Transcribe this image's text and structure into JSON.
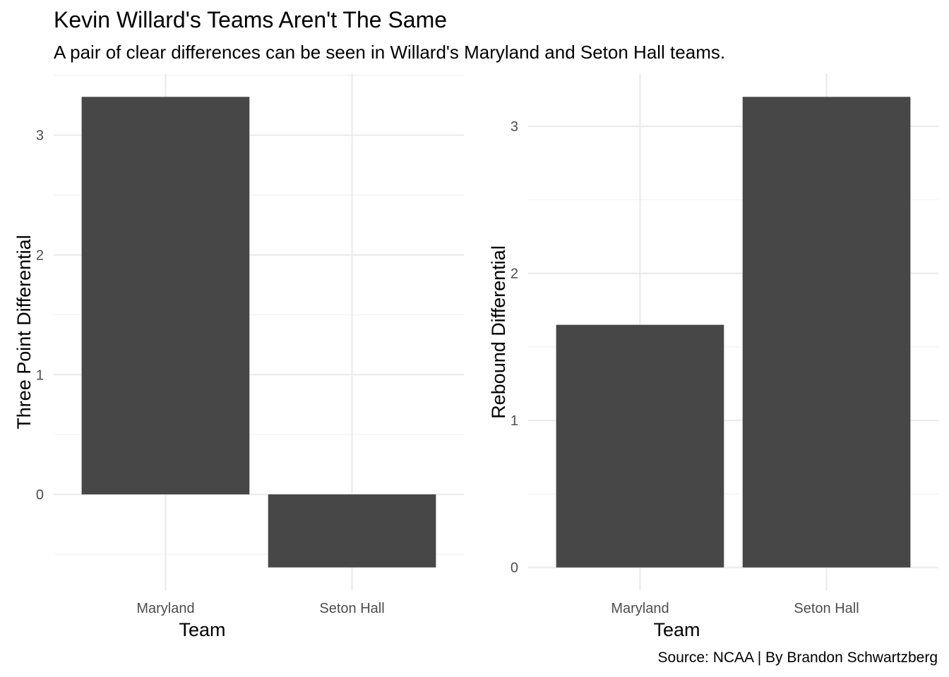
{
  "title": "Kevin Willard's Teams Aren't The Same",
  "subtitle": "A pair of clear differences can be seen in Willard's Maryland and Seton Hall teams.",
  "caption": "Source: NCAA | By Brandon Schwartzberg",
  "colors": {
    "bar": "#474747",
    "grid_major": "#ebebeb",
    "grid_minor": "#f2f2f2",
    "background": "#ffffff"
  },
  "chart_data": [
    {
      "type": "bar",
      "categories": [
        "Maryland",
        "Seton Hall"
      ],
      "values": [
        3.32,
        -0.61
      ],
      "xlabel": "Team",
      "ylabel": "Three Point Differential",
      "ylim": [
        -0.61,
        3.32
      ],
      "yticks": [
        0,
        1,
        2,
        3
      ],
      "grid": true,
      "legend": "none"
    },
    {
      "type": "bar",
      "categories": [
        "Maryland",
        "Seton Hall"
      ],
      "values": [
        1.65,
        3.2
      ],
      "xlabel": "Team",
      "ylabel": "Rebound Differential",
      "ylim": [
        0,
        3.2
      ],
      "yticks": [
        0,
        1,
        2,
        3
      ],
      "grid": true,
      "legend": "none"
    }
  ]
}
